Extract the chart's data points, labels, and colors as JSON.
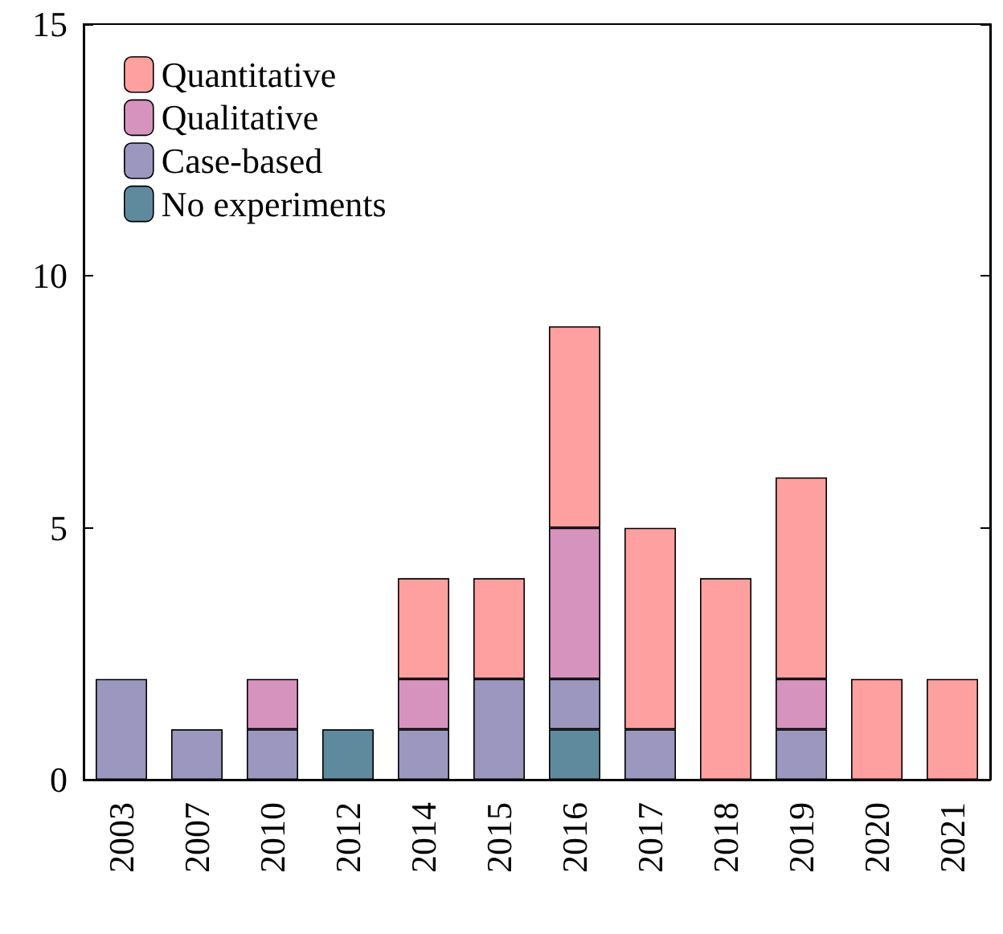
{
  "chart_data": {
    "type": "bar",
    "stacked": true,
    "categories": [
      "2003",
      "2007",
      "2010",
      "2012",
      "2014",
      "2015",
      "2016",
      "2017",
      "2018",
      "2019",
      "2020",
      "2021"
    ],
    "series": [
      {
        "name": "No experiments",
        "color": "#5f8a9e",
        "values": [
          0,
          0,
          0,
          1,
          0,
          0,
          1,
          0,
          0,
          0,
          0,
          0
        ]
      },
      {
        "name": "Case-based",
        "color": "#9b97bf",
        "values": [
          2,
          1,
          1,
          0,
          1,
          2,
          1,
          1,
          0,
          1,
          0,
          0
        ]
      },
      {
        "name": "Qualitative",
        "color": "#d693bd",
        "values": [
          0,
          0,
          1,
          0,
          1,
          0,
          3,
          0,
          0,
          1,
          0,
          0
        ]
      },
      {
        "name": "Quantitative",
        "color": "#ffa0a0",
        "values": [
          0,
          0,
          0,
          0,
          2,
          2,
          4,
          4,
          4,
          4,
          2,
          2
        ]
      }
    ],
    "ylim": [
      0,
      15
    ],
    "yticks": [
      0,
      5,
      10,
      15
    ],
    "grid": false,
    "legend": "top left"
  }
}
